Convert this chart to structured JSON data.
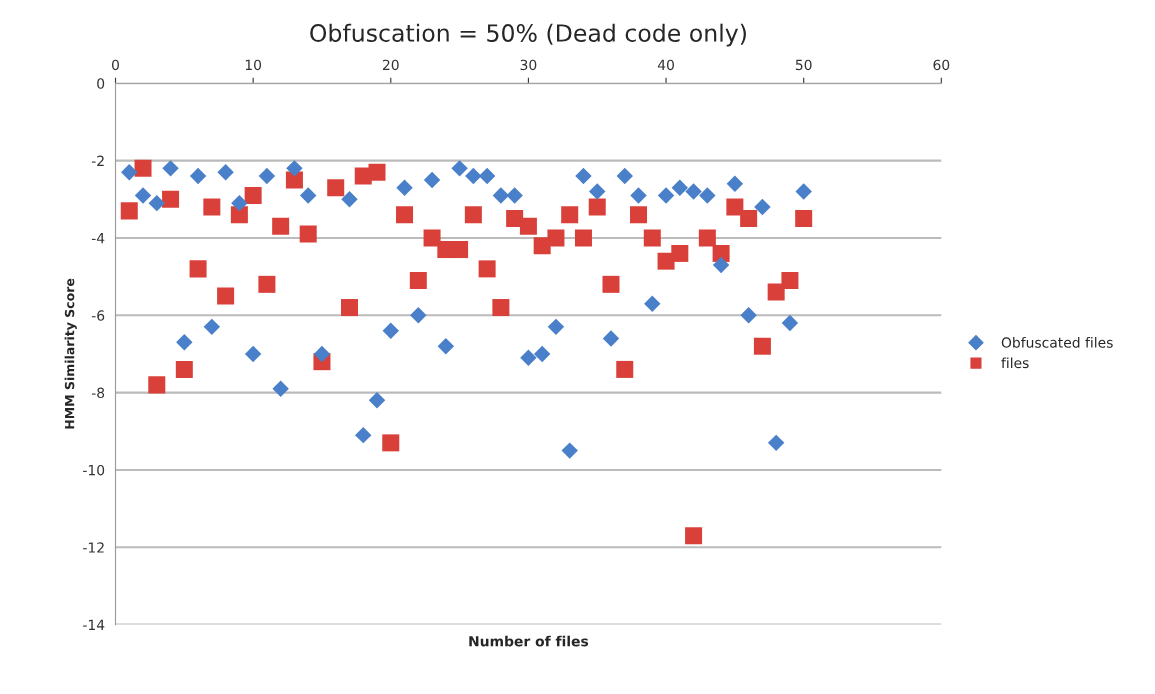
{
  "chart_data": {
    "type": "scatter",
    "title": "Obfuscation = 50% (Dead code only)",
    "xlabel": "Number of files",
    "ylabel": "HMM Similarity Score",
    "x": [
      1,
      2,
      3,
      4,
      5,
      6,
      7,
      8,
      9,
      10,
      11,
      12,
      13,
      14,
      15,
      16,
      17,
      18,
      19,
      20,
      21,
      22,
      23,
      24,
      25,
      26,
      27,
      28,
      29,
      30,
      31,
      32,
      33,
      34,
      35,
      36,
      37,
      38,
      39,
      40,
      41,
      42,
      43,
      44,
      45,
      46,
      47,
      48,
      49,
      50
    ],
    "series": [
      {
        "name": "Obfuscated files",
        "color": "#4a7fc9",
        "marker": "diamond",
        "values": [
          -2.3,
          -2.9,
          -3.1,
          -2.2,
          -6.7,
          -2.4,
          -6.3,
          -2.3,
          -3.1,
          -7.0,
          -2.4,
          -7.9,
          -2.2,
          -2.9,
          -7.0,
          null,
          -3.0,
          -9.1,
          -8.2,
          -6.4,
          -2.7,
          -6.0,
          -2.5,
          -6.8,
          -2.2,
          -2.4,
          -2.4,
          -2.9,
          -2.9,
          -7.1,
          -7.0,
          -6.3,
          -9.5,
          -2.4,
          -2.8,
          -6.6,
          -2.4,
          -2.9,
          -5.7,
          -2.9,
          -2.7,
          -2.8,
          -2.9,
          -4.7,
          -2.6,
          -6.0,
          -3.2,
          -9.3,
          -6.2,
          -2.8
        ]
      },
      {
        "name": "files",
        "color": "#d9403a",
        "marker": "square",
        "values": [
          -3.3,
          -2.2,
          -7.8,
          -3.0,
          -7.4,
          -4.8,
          -3.2,
          -5.5,
          -3.4,
          -2.9,
          -5.2,
          -3.7,
          -2.5,
          -3.9,
          -7.2,
          -2.7,
          -5.8,
          -2.4,
          -2.3,
          -9.3,
          -3.4,
          -5.1,
          -4.0,
          -4.3,
          -4.3,
          -3.4,
          -4.8,
          -5.8,
          -3.5,
          -3.7,
          -4.2,
          -4.0,
          -3.4,
          -4.0,
          -3.2,
          -5.2,
          -7.4,
          -3.4,
          -4.0,
          -4.6,
          -4.4,
          -11.7,
          -4.0,
          -4.4,
          -3.2,
          -3.5,
          -6.8,
          -5.4,
          -5.1,
          -3.5
        ]
      }
    ],
    "xlim": [
      0,
      60
    ],
    "xticks": [
      0,
      10,
      20,
      30,
      40,
      50,
      60
    ],
    "ylim": [
      -14,
      0
    ],
    "yticks": [
      -14,
      -12,
      -10,
      -8,
      -6,
      -4,
      -2,
      0
    ],
    "grid": "y",
    "legend": "right"
  }
}
